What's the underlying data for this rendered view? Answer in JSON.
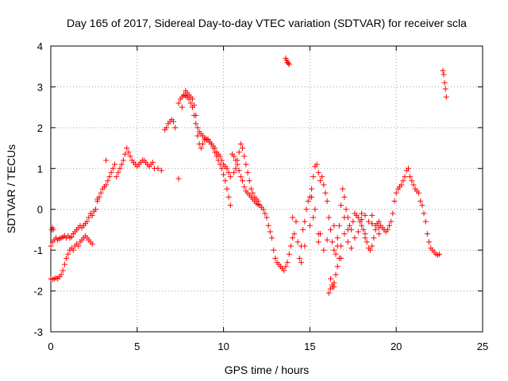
{
  "chart_data": {
    "type": "scatter",
    "title": "Day 165 of 2017, Sidereal Day-to-day VTEC variation (SDTVAR) for receiver scla",
    "xlabel": "GPS time / hours",
    "ylabel": "SDTVAR / TECUs",
    "xlim": [
      0,
      25
    ],
    "ylim": [
      -3,
      4
    ],
    "xticks": [
      "0",
      "5",
      "10",
      "15",
      "20",
      "25"
    ],
    "yticks": [
      "-3",
      "-2",
      "-1",
      "0",
      "1",
      "2",
      "3",
      "4"
    ],
    "grid": true,
    "marker": "+",
    "color": "#ff0000",
    "series": [
      {
        "name": "SDTVAR",
        "x": [
          0.0,
          0.1,
          0.2,
          0.3,
          0.4,
          0.5,
          0.6,
          0.7,
          0.8,
          0.9,
          1.0,
          1.1,
          1.2,
          1.3,
          1.4,
          1.5,
          1.6,
          1.7,
          1.8,
          1.9,
          2.0,
          2.1,
          2.2,
          2.3,
          2.4,
          2.5,
          2.6,
          2.7,
          2.8,
          2.9,
          3.0,
          3.1,
          3.2,
          3.3,
          3.4,
          3.5,
          3.6,
          3.7,
          3.8,
          3.9,
          4.0,
          4.1,
          4.2,
          4.3,
          4.4,
          4.5,
          4.6,
          4.7,
          4.8,
          4.9,
          5.0,
          5.1,
          5.2,
          5.3,
          5.4,
          5.5,
          5.6,
          5.7,
          5.8,
          5.9,
          6.0,
          6.2,
          6.4,
          0.0,
          0.1,
          0.2,
          0.3,
          0.4,
          0.5,
          0.6,
          0.7,
          0.8,
          0.9,
          1.0,
          1.1,
          1.2,
          1.3,
          1.4,
          1.5,
          1.6,
          1.7,
          1.8,
          1.9,
          2.0,
          2.1,
          2.2,
          2.3,
          2.4,
          0.05,
          0.1,
          0.15,
          2.7,
          3.2,
          7.4,
          6.6,
          6.7,
          6.8,
          6.9,
          7.0,
          7.1,
          7.2,
          7.6,
          7.7,
          7.8,
          7.9,
          8.0,
          8.1,
          8.2,
          8.3,
          8.4,
          8.5,
          8.6,
          8.7,
          8.8,
          8.9,
          9.0,
          9.1,
          9.2,
          9.3,
          9.4,
          9.5,
          9.6,
          9.7,
          9.8,
          9.9,
          10.0,
          10.1,
          10.2,
          10.3,
          10.4,
          10.5,
          10.6,
          10.7,
          10.8,
          10.9,
          11.0,
          11.1,
          11.2,
          11.3,
          11.4,
          11.5,
          11.6,
          11.7,
          11.8,
          11.9,
          12.0,
          12.1,
          12.2,
          12.3,
          12.4,
          12.5,
          12.6,
          12.7,
          12.8,
          12.9,
          13.0,
          13.1,
          13.2,
          13.3,
          13.4,
          13.5,
          13.6,
          13.7,
          13.8,
          13.9,
          14.0,
          7.4,
          7.5,
          7.6,
          7.7,
          7.8,
          7.9,
          8.0,
          8.1,
          8.2,
          8.3,
          8.4,
          8.5,
          8.6,
          8.7,
          8.8,
          8.9,
          9.0,
          9.1,
          9.2,
          9.3,
          9.4,
          9.5,
          9.6,
          9.7,
          9.8,
          9.9,
          10.0,
          10.1,
          10.2,
          10.3,
          10.4,
          10.6,
          10.7,
          10.8,
          10.9,
          11.0,
          11.1,
          11.2,
          11.3,
          11.4,
          11.5,
          11.6,
          11.7,
          11.8,
          11.9,
          12.0,
          13.6,
          13.65,
          13.7,
          13.75,
          13.8,
          14.0,
          14.1,
          14.2,
          14.3,
          14.4,
          14.5,
          14.6,
          14.7,
          14.8,
          14.9,
          15.0,
          15.1,
          15.2,
          15.3,
          15.4,
          15.5,
          15.6,
          15.7,
          15.8,
          15.9,
          16.0,
          16.1,
          16.2,
          16.3,
          16.4,
          16.5,
          16.6,
          16.7,
          16.8,
          16.9,
          17.0,
          17.1,
          17.2,
          17.3,
          17.4,
          17.5,
          17.6,
          17.7,
          17.8,
          17.9,
          18.0,
          18.1,
          18.2,
          18.3,
          18.4,
          18.5,
          18.6,
          18.7,
          18.8,
          18.9,
          19.0,
          19.1,
          19.2,
          19.3,
          19.4,
          19.5,
          19.6,
          19.7,
          19.8,
          19.9,
          20.0,
          20.1,
          20.2,
          20.3,
          20.4,
          20.5,
          20.6,
          20.7,
          20.8,
          20.9,
          21.0,
          21.1,
          21.2,
          21.3,
          21.4,
          21.5,
          21.6,
          21.7,
          21.8,
          21.9,
          22.0,
          22.1,
          22.2,
          22.3,
          22.4,
          22.5,
          14.5,
          14.7,
          15.0,
          15.2,
          15.5,
          15.6,
          15.8,
          16.0,
          16.2,
          16.3,
          16.4,
          16.5,
          16.6,
          16.7,
          16.8,
          17.0,
          17.2,
          17.4,
          17.6,
          17.8,
          18.0,
          18.2,
          18.4,
          18.6,
          18.8,
          19.0,
          15.1,
          15.3,
          15.5,
          16.4,
          16.6,
          16.8,
          17.0,
          17.2,
          18.0,
          18.2,
          18.6,
          19.0,
          16.1,
          16.2,
          16.3,
          16.4,
          22.7,
          22.75,
          22.8,
          22.85,
          22.9
        ],
        "y": [
          -0.9,
          -0.8,
          -0.75,
          -0.7,
          -0.75,
          -0.72,
          -0.7,
          -0.68,
          -0.65,
          -0.7,
          -0.65,
          -0.7,
          -0.68,
          -0.6,
          -0.55,
          -0.5,
          -0.45,
          -0.4,
          -0.45,
          -0.4,
          -0.35,
          -0.3,
          -0.2,
          -0.1,
          -0.15,
          -0.05,
          0.0,
          0.2,
          0.3,
          0.4,
          0.5,
          0.55,
          0.6,
          0.7,
          0.8,
          0.9,
          1.0,
          1.1,
          0.8,
          0.9,
          1.0,
          1.1,
          1.2,
          1.35,
          1.5,
          1.4,
          1.3,
          1.2,
          1.15,
          1.1,
          1.05,
          1.1,
          1.15,
          1.2,
          1.2,
          1.15,
          1.1,
          1.05,
          1.1,
          1.15,
          1.0,
          1.0,
          0.95,
          -1.7,
          -1.72,
          -1.7,
          -1.68,
          -1.7,
          -1.65,
          -1.6,
          -1.5,
          -1.35,
          -1.2,
          -1.1,
          -1.0,
          -0.95,
          -1.0,
          -0.9,
          -0.85,
          -0.9,
          -0.8,
          -0.75,
          -0.7,
          -0.65,
          -0.7,
          -0.75,
          -0.8,
          -0.85,
          -0.5,
          -0.45,
          -0.5,
          0.25,
          1.2,
          0.75,
          1.95,
          2.0,
          2.1,
          2.15,
          2.2,
          2.15,
          2.0,
          2.5,
          2.8,
          2.9,
          2.85,
          2.8,
          2.75,
          2.7,
          2.55,
          2.3,
          2.0,
          1.9,
          1.85,
          1.8,
          1.75,
          1.7,
          1.72,
          1.65,
          1.6,
          1.55,
          1.5,
          1.4,
          1.35,
          1.3,
          1.2,
          1.1,
          1.05,
          1.0,
          0.9,
          0.8,
          1.35,
          1.3,
          1.2,
          1.1,
          0.95,
          0.8,
          0.7,
          0.55,
          0.45,
          0.4,
          0.35,
          0.3,
          0.25,
          0.2,
          0.15,
          0.12,
          0.1,
          0.05,
          0.0,
          -0.1,
          -0.2,
          -0.4,
          -0.55,
          -0.7,
          -1.0,
          -1.2,
          -1.3,
          -1.35,
          -1.4,
          -1.45,
          -1.5,
          -1.4,
          -1.3,
          -1.1,
          -0.9,
          -0.7,
          2.6,
          2.7,
          2.75,
          2.8,
          2.78,
          2.75,
          2.7,
          2.6,
          2.5,
          2.3,
          2.1,
          1.8,
          1.6,
          1.5,
          1.6,
          1.7,
          1.72,
          1.7,
          1.65,
          1.6,
          1.5,
          1.4,
          1.3,
          1.2,
          1.1,
          1.0,
          0.85,
          0.7,
          0.5,
          0.3,
          0.1,
          0.9,
          1.0,
          1.2,
          1.4,
          1.6,
          1.5,
          1.3,
          1.1,
          0.9,
          0.7,
          0.5,
          0.4,
          0.3,
          0.25,
          0.2,
          3.7,
          3.65,
          3.6,
          3.58,
          3.55,
          -0.2,
          -0.6,
          -0.3,
          -0.8,
          -1.2,
          -0.9,
          -0.5,
          -0.3,
          0.0,
          0.2,
          0.3,
          0.5,
          0.8,
          1.05,
          1.1,
          0.9,
          0.7,
          0.8,
          0.6,
          0.4,
          0.2,
          -0.2,
          -0.5,
          -0.8,
          -1.0,
          -1.1,
          -0.7,
          -0.4,
          0.1,
          0.5,
          0.3,
          0.0,
          -0.2,
          -0.4,
          -0.5,
          -0.3,
          -0.1,
          -0.15,
          -0.2,
          -0.3,
          -0.4,
          -0.5,
          -0.6,
          -0.8,
          -0.95,
          -1.0,
          -0.9,
          -0.7,
          -0.5,
          -0.35,
          -0.3,
          -0.4,
          -0.45,
          -0.5,
          -0.55,
          -0.5,
          -0.4,
          -0.3,
          -0.1,
          0.2,
          0.4,
          0.5,
          0.55,
          0.6,
          0.7,
          0.8,
          0.95,
          1.0,
          0.8,
          0.7,
          0.6,
          0.5,
          0.45,
          0.4,
          0.2,
          0.1,
          -0.1,
          -0.3,
          -0.6,
          -0.8,
          -0.95,
          -1.0,
          -1.05,
          -1.1,
          -1.12,
          -1.1,
          -1.3,
          -0.9,
          -0.4,
          -0.2,
          -0.8,
          -0.6,
          -1.0,
          -0.75,
          -1.7,
          -1.9,
          -1.8,
          -1.6,
          -1.4,
          -1.2,
          -0.9,
          -0.6,
          -0.8,
          -0.95,
          -0.7,
          -0.55,
          -0.25,
          -0.15,
          -0.3,
          -0.35,
          -0.4,
          -0.6,
          0.3,
          0.0,
          -0.6,
          -0.4,
          -0.9,
          -1.2,
          -0.2,
          -0.5,
          -0.1,
          -0.7,
          -0.15,
          -0.45,
          -2.05,
          -1.95,
          -1.85,
          -1.9,
          3.4,
          3.3,
          3.1,
          2.95,
          2.75
        ]
      }
    ]
  }
}
